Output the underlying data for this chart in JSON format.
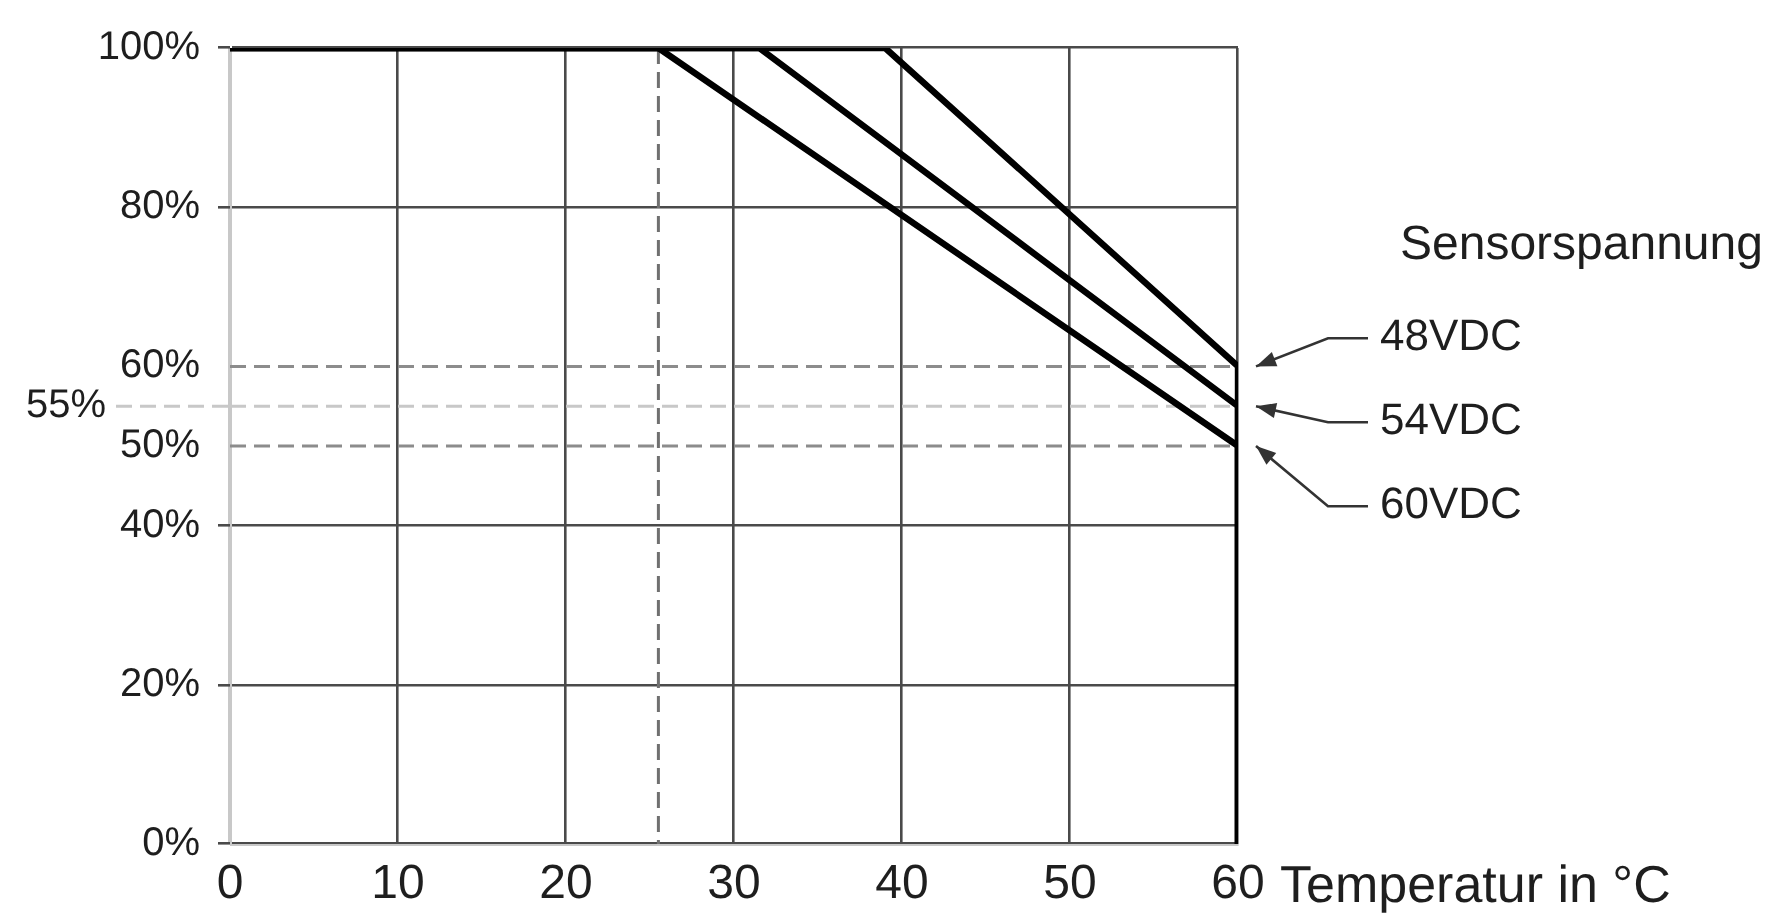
{
  "chart_data": {
    "type": "line",
    "xlabel": "Temperatur in °C",
    "legend_title": "Sensorspannung",
    "series": [
      {
        "name": "48VDC",
        "color": "#000000",
        "x": [
          0,
          39,
          60,
          60
        ],
        "values": [
          100,
          100,
          60,
          0
        ]
      },
      {
        "name": "54VDC",
        "color": "#000000",
        "x": [
          0,
          31.5,
          60,
          60
        ],
        "values": [
          100,
          100,
          55,
          0
        ]
      },
      {
        "name": "60VDC",
        "color": "#000000",
        "x": [
          0,
          25.5,
          60,
          60
        ],
        "values": [
          100,
          100,
          50,
          0
        ]
      }
    ],
    "xlim": [
      0,
      60
    ],
    "xticks": [
      0,
      10,
      20,
      30,
      40,
      50,
      60
    ],
    "ylim": [
      0,
      100
    ],
    "yticks": [
      {
        "value": 0,
        "label": "0%"
      },
      {
        "value": 20,
        "label": "20%"
      },
      {
        "value": 40,
        "label": "40%"
      },
      {
        "value": 80,
        "label": "80%"
      },
      {
        "value": 100,
        "label": "100%"
      }
    ],
    "ref_lines": [
      {
        "axis": "y",
        "value": 60,
        "label": "60%",
        "color": "#8c8c8c",
        "line_style": "dashed"
      },
      {
        "axis": "y",
        "value": 55,
        "label": "55%",
        "color": "#c8c8c8",
        "line_style": "dashed"
      },
      {
        "axis": "y",
        "value": 50,
        "label": "50%",
        "color": "#8c8c8c",
        "line_style": "dashed"
      },
      {
        "axis": "x",
        "value": 25.5,
        "color": "#707070",
        "line_style": "dashed"
      }
    ],
    "grid": true
  }
}
